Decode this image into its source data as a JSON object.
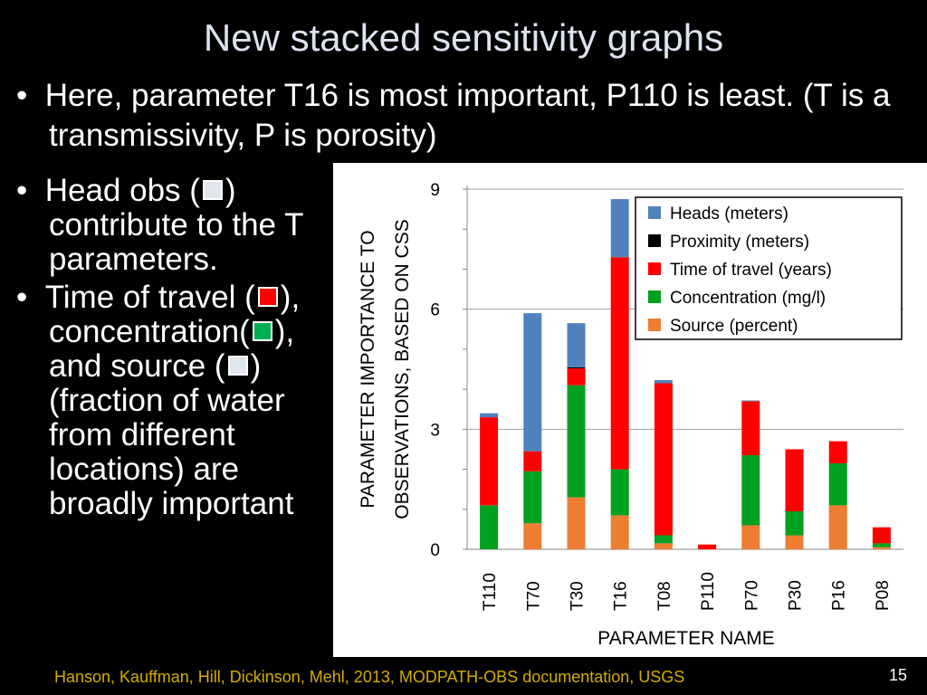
{
  "slide": {
    "title": "New stacked sensitivity graphs",
    "bullet_top": "Here, parameter T16 is most important, P110 is least. (T is a transmissivity, P is porosity)",
    "left_bullets": [
      {
        "parts": [
          "Head obs (",
          ") contribute to the T parameters."
        ],
        "swatch_color": "#dfe6ee"
      },
      {
        "parts": [
          "Time of travel (",
          "), concentration(",
          "), and source (",
          ") (fraction of water from different locations) are broadly important"
        ],
        "swatch_colors": [
          "#ff0000",
          "#00b050",
          "#dfe6ee"
        ]
      }
    ],
    "footer": "Hanson, Kauffman, Hill, Dickinson, Mehl, 2013, MODPATH-OBS documentation, USGS",
    "page_number": "15"
  },
  "chart_data": {
    "type": "bar",
    "stacked": true,
    "categories": [
      "T110",
      "T70",
      "T30",
      "T16",
      "T08",
      "P110",
      "P70",
      "P30",
      "P16",
      "P08"
    ],
    "series": [
      {
        "name": "Source (percent)",
        "color": "#ed7d31",
        "values": [
          0.0,
          0.65,
          1.3,
          0.85,
          0.15,
          0.0,
          0.6,
          0.35,
          1.1,
          0.05
        ]
      },
      {
        "name": "Concentration (mg/l)",
        "color": "#00a020",
        "values": [
          1.1,
          1.3,
          2.8,
          1.15,
          0.2,
          0.0,
          1.75,
          0.6,
          1.05,
          0.1
        ]
      },
      {
        "name": "Time of travel (years)",
        "color": "#ff0000",
        "values": [
          2.2,
          0.5,
          0.42,
          5.3,
          3.8,
          0.12,
          1.35,
          1.55,
          0.55,
          0.4
        ]
      },
      {
        "name": "Proximity (meters)",
        "color": "#000000",
        "values": [
          0.0,
          0.0,
          0.03,
          0.0,
          0.0,
          0.0,
          0.0,
          0.0,
          0.0,
          0.0
        ]
      },
      {
        "name": "Heads (meters)",
        "color": "#4f81bd",
        "values": [
          0.1,
          3.45,
          1.1,
          1.45,
          0.08,
          0.0,
          0.02,
          0.0,
          0.0,
          0.0
        ]
      }
    ],
    "legend_order": [
      "Heads (meters)",
      "Proximity (meters)",
      "Time of travel (years)",
      "Concentration (mg/l)",
      "Source (percent)"
    ],
    "legend_position": "top-right",
    "xlabel": "PARAMETER NAME",
    "ylabel_lines": [
      "PARAMETER IMPORTANCE TO",
      "OBSERVATIONS, BASED ON CSS"
    ],
    "ylim": [
      0,
      9
    ],
    "yticks": [
      0,
      3,
      6,
      9
    ],
    "grid": true
  }
}
